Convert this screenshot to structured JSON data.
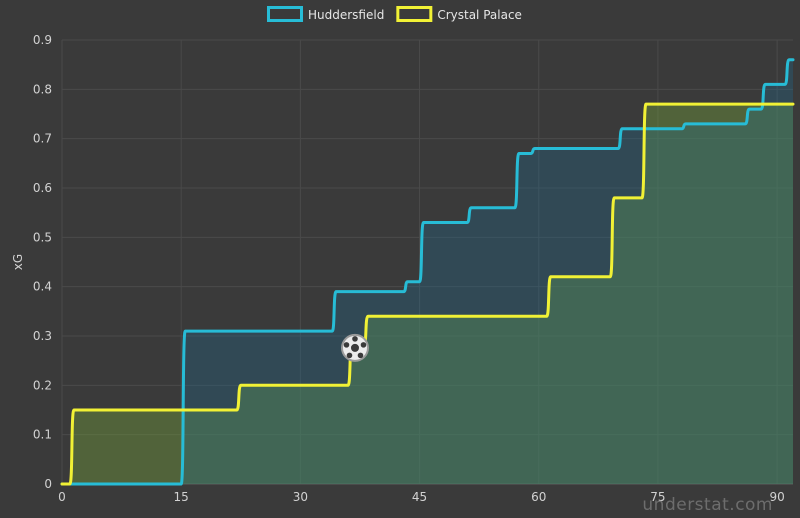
{
  "chart_data": {
    "type": "line",
    "xlabel": "",
    "ylabel": "xG",
    "xlim": [
      0,
      92
    ],
    "ylim": [
      0,
      0.9
    ],
    "x_ticks": [
      0,
      15,
      30,
      45,
      60,
      75,
      90
    ],
    "y_ticks": [
      0,
      0.1,
      0.2,
      0.3,
      0.4,
      0.5,
      0.6,
      0.7,
      0.8,
      0.9
    ],
    "step": true,
    "grid": true,
    "legend": "top-center",
    "series": [
      {
        "name": "Huddersfield",
        "color": "#27bcd6",
        "points": [
          [
            0,
            0
          ],
          [
            15,
            0
          ],
          [
            16,
            0.31
          ],
          [
            34,
            0.31
          ],
          [
            35,
            0.39
          ],
          [
            43,
            0.39
          ],
          [
            44,
            0.41
          ],
          [
            45,
            0.41
          ],
          [
            46,
            0.53
          ],
          [
            51,
            0.53
          ],
          [
            52,
            0.56
          ],
          [
            57,
            0.56
          ],
          [
            58,
            0.67
          ],
          [
            59,
            0.67
          ],
          [
            60,
            0.68
          ],
          [
            70,
            0.68
          ],
          [
            71,
            0.72
          ],
          [
            78,
            0.72
          ],
          [
            79,
            0.73
          ],
          [
            86,
            0.73
          ],
          [
            87,
            0.76
          ],
          [
            88,
            0.76
          ],
          [
            89,
            0.81
          ],
          [
            91,
            0.81
          ],
          [
            92,
            0.86
          ]
        ]
      },
      {
        "name": "Crystal Palace",
        "color": "#f1f135",
        "points": [
          [
            0,
            0
          ],
          [
            1,
            0
          ],
          [
            2,
            0.15
          ],
          [
            22,
            0.15
          ],
          [
            23,
            0.2
          ],
          [
            36,
            0.2
          ],
          [
            37,
            0.28
          ],
          [
            38,
            0.28
          ],
          [
            39,
            0.34
          ],
          [
            61,
            0.34
          ],
          [
            62,
            0.42
          ],
          [
            69,
            0.42
          ],
          [
            70,
            0.58
          ],
          [
            73,
            0.58
          ],
          [
            74,
            0.77
          ],
          [
            92,
            0.77
          ]
        ]
      }
    ],
    "events": [
      {
        "type": "goal",
        "team": "Crystal Palace",
        "minute": 37,
        "xg": 0.28
      }
    ]
  },
  "watermark": "understat.com"
}
